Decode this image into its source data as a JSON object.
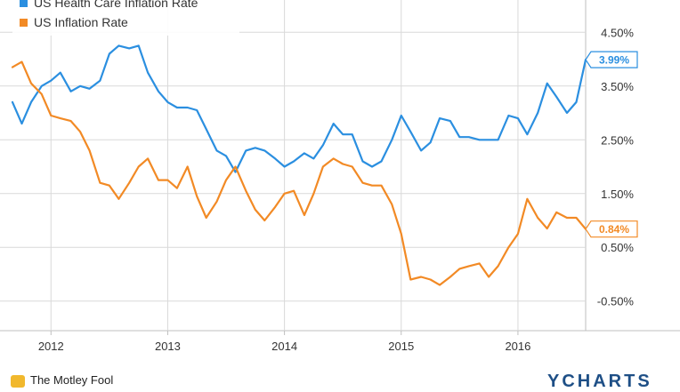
{
  "chart_data": {
    "type": "line",
    "legend": {
      "placement": "top-left"
    },
    "y_axis": {
      "side": "right",
      "ticks": [
        4.5,
        3.5,
        2.5,
        1.5,
        0.5,
        -0.5
      ],
      "tick_labels": [
        "4.50%",
        "3.50%",
        "2.50%",
        "1.50%",
        "0.50%",
        "-0.50%"
      ],
      "ylim": [
        -1.05,
        5.1
      ]
    },
    "x_axis": {
      "ticks": [
        2012,
        2013,
        2014,
        2015,
        2016
      ],
      "tick_labels": [
        "2012",
        "2013",
        "2014",
        "2015",
        "2016"
      ],
      "xlim": [
        2011.67,
        2016.58
      ]
    },
    "grid": {
      "horizontal": true,
      "vertical": true,
      "color": "#d9d9d9"
    },
    "series": [
      {
        "name": "US Health Care Inflation Rate",
        "color": "#2b8fe0",
        "end_label": "3.99%",
        "x": [
          2011.67,
          2011.75,
          2011.83,
          2011.92,
          2012.0,
          2012.08,
          2012.17,
          2012.25,
          2012.33,
          2012.42,
          2012.5,
          2012.58,
          2012.67,
          2012.75,
          2012.83,
          2012.92,
          2013.0,
          2013.08,
          2013.17,
          2013.25,
          2013.33,
          2013.42,
          2013.5,
          2013.58,
          2013.67,
          2013.75,
          2013.83,
          2013.92,
          2014.0,
          2014.08,
          2014.17,
          2014.25,
          2014.33,
          2014.42,
          2014.5,
          2014.58,
          2014.67,
          2014.75,
          2014.83,
          2014.92,
          2015.0,
          2015.08,
          2015.17,
          2015.25,
          2015.33,
          2015.42,
          2015.5,
          2015.58,
          2015.67,
          2015.75,
          2015.83,
          2015.92,
          2016.0,
          2016.08,
          2016.17,
          2016.25,
          2016.33,
          2016.42,
          2016.5,
          2016.58
        ],
        "values": [
          3.2,
          2.8,
          3.2,
          3.5,
          3.6,
          3.75,
          3.4,
          3.5,
          3.45,
          3.6,
          4.1,
          4.25,
          4.2,
          4.25,
          3.75,
          3.4,
          3.2,
          3.1,
          3.1,
          3.05,
          2.7,
          2.3,
          2.2,
          1.9,
          2.3,
          2.35,
          2.3,
          2.15,
          2.0,
          2.1,
          2.25,
          2.15,
          2.4,
          2.8,
          2.6,
          2.6,
          2.1,
          2.0,
          2.1,
          2.5,
          2.95,
          2.65,
          2.3,
          2.45,
          2.9,
          2.85,
          2.55,
          2.55,
          2.5,
          2.5,
          2.5,
          2.95,
          2.9,
          2.6,
          3.0,
          3.55,
          3.3,
          3.0,
          3.2,
          3.99
        ]
      },
      {
        "name": "US Inflation Rate",
        "color": "#f28a25",
        "end_label": "0.84%",
        "x": [
          2011.67,
          2011.75,
          2011.83,
          2011.92,
          2012.0,
          2012.08,
          2012.17,
          2012.25,
          2012.33,
          2012.42,
          2012.5,
          2012.58,
          2012.67,
          2012.75,
          2012.83,
          2012.92,
          2013.0,
          2013.08,
          2013.17,
          2013.25,
          2013.33,
          2013.42,
          2013.5,
          2013.58,
          2013.67,
          2013.75,
          2013.83,
          2013.92,
          2014.0,
          2014.08,
          2014.17,
          2014.25,
          2014.33,
          2014.42,
          2014.5,
          2014.58,
          2014.67,
          2014.75,
          2014.83,
          2014.92,
          2015.0,
          2015.08,
          2015.17,
          2015.25,
          2015.33,
          2015.42,
          2015.5,
          2015.58,
          2015.67,
          2015.75,
          2015.83,
          2015.92,
          2016.0,
          2016.08,
          2016.17,
          2016.25,
          2016.33,
          2016.42,
          2016.5,
          2016.58
        ],
        "values": [
          3.85,
          3.95,
          3.55,
          3.35,
          2.95,
          2.9,
          2.85,
          2.65,
          2.3,
          1.7,
          1.65,
          1.4,
          1.7,
          2.0,
          2.15,
          1.75,
          1.75,
          1.6,
          2.0,
          1.45,
          1.05,
          1.35,
          1.75,
          2.0,
          1.55,
          1.2,
          1.0,
          1.25,
          1.5,
          1.55,
          1.1,
          1.5,
          2.0,
          2.15,
          2.05,
          2.0,
          1.7,
          1.65,
          1.65,
          1.3,
          0.75,
          -0.1,
          -0.05,
          -0.1,
          -0.2,
          -0.05,
          0.1,
          0.15,
          0.2,
          -0.05,
          0.15,
          0.5,
          0.75,
          1.4,
          1.05,
          0.85,
          1.15,
          1.05,
          1.05,
          0.84
        ]
      }
    ]
  },
  "footer": {
    "left_text": "The Motley Fool",
    "right_text": "YCHARTS"
  }
}
